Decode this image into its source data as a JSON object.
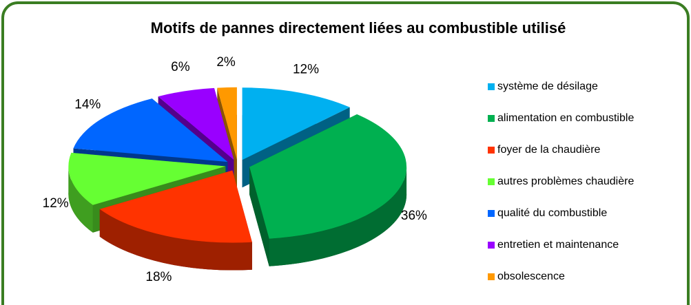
{
  "chart_data": {
    "type": "pie3d",
    "title": "Motifs de pannes directement liées au combustible utilisé",
    "categories": [
      "système de désilage",
      "alimentation en combustible",
      "foyer de la chaudière",
      "autres problèmes chaudière",
      "qualité du combustible",
      "entretien et maintenance",
      "obsolescence"
    ],
    "values": [
      12,
      36,
      18,
      12,
      14,
      6,
      2
    ],
    "value_labels": [
      "12%",
      "36%",
      "18%",
      "12%",
      "14%",
      "6%",
      "2%"
    ],
    "colors": [
      "#00b0f0",
      "#00b050",
      "#ff3300",
      "#66ff33",
      "#0066ff",
      "#9900ff",
      "#ff9900"
    ],
    "legend": "right"
  }
}
